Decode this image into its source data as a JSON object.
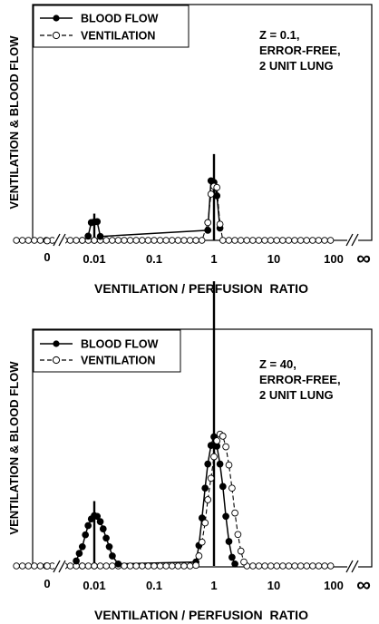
{
  "chart_data": [
    {
      "type": "line",
      "xlabel": "VENTILATION / PERFUSION  RATIO",
      "ylabel": "VENTILATION & BLOOD FLOW",
      "x_scale": "log",
      "x_ticks": [
        "0",
        "0.01",
        "0.1",
        "1",
        "10",
        "100",
        "∞"
      ],
      "legend_position": "top-left",
      "annotation": [
        "Z = 0.1,",
        "ERROR-FREE,",
        "2 UNIT LUNG"
      ],
      "true_distribution": [
        {
          "x": 0.01,
          "height": 0.48
        },
        {
          "x": 1,
          "height": 1.55
        }
      ],
      "series": [
        {
          "name": "BLOOD FLOW",
          "marker": "filled-circle",
          "line": "solid",
          "points": [
            {
              "x": 0.0079,
              "y": 0.15
            },
            {
              "x": 0.0089,
              "y": 0.64
            },
            {
              "x": 0.01,
              "y": 0.66
            },
            {
              "x": 0.0112,
              "y": 0.67
            },
            {
              "x": 0.0126,
              "y": 0.14
            },
            {
              "x": 0.79,
              "y": 0.36
            },
            {
              "x": 0.89,
              "y": 2.14
            },
            {
              "x": 1.0,
              "y": 2.08
            },
            {
              "x": 1.12,
              "y": 1.6
            },
            {
              "x": 1.26,
              "y": 0.44
            }
          ]
        },
        {
          "name": "VENTILATION",
          "marker": "open-circle",
          "line": "dashed",
          "points": [
            {
              "x": 0.0005,
              "y": 0
            },
            {
              "x": 0.0063,
              "y": 0
            },
            {
              "x": 0.01,
              "y": 0
            },
            {
              "x": 0.5,
              "y": 0
            },
            {
              "x": 0.63,
              "y": 0
            },
            {
              "x": 0.79,
              "y": 0.64
            },
            {
              "x": 0.89,
              "y": 1.66
            },
            {
              "x": 1.0,
              "y": 1.94
            },
            {
              "x": 1.12,
              "y": 1.9
            },
            {
              "x": 1.26,
              "y": 0.58
            },
            {
              "x": 1.41,
              "y": 0
            },
            {
              "x": 100,
              "y": 0
            }
          ]
        }
      ]
    },
    {
      "type": "line",
      "xlabel": "VENTILATION / PERFUSION  RATIO",
      "ylabel": "VENTILATION & BLOOD FLOW",
      "x_scale": "log",
      "x_ticks": [
        "0",
        "0.01",
        "0.1",
        "1",
        "10",
        "100",
        "∞"
      ],
      "legend_position": "top-left",
      "annotation": [
        "Z = 40,",
        "ERROR-FREE,",
        "2 UNIT LUNG"
      ],
      "true_distribution": [
        {
          "x": 0.01,
          "height": 0.98
        },
        {
          "x": 1,
          "height": 4.3
        }
      ],
      "series": [
        {
          "name": "BLOOD FLOW",
          "marker": "filled-circle",
          "line": "solid",
          "points": [
            {
              "x": 0.005,
              "y": 0.15
            },
            {
              "x": 0.0056,
              "y": 0.38
            },
            {
              "x": 0.0063,
              "y": 0.58
            },
            {
              "x": 0.0071,
              "y": 0.94
            },
            {
              "x": 0.0079,
              "y": 1.22
            },
            {
              "x": 0.0089,
              "y": 1.42
            },
            {
              "x": 0.01,
              "y": 1.52
            },
            {
              "x": 0.0112,
              "y": 1.5
            },
            {
              "x": 0.0126,
              "y": 1.34
            },
            {
              "x": 0.0141,
              "y": 1.12
            },
            {
              "x": 0.0158,
              "y": 0.84
            },
            {
              "x": 0.0178,
              "y": 0.58
            },
            {
              "x": 0.02,
              "y": 0.3
            },
            {
              "x": 0.0251,
              "y": 0.06
            },
            {
              "x": 0.5,
              "y": 0.12
            },
            {
              "x": 0.56,
              "y": 0.62
            },
            {
              "x": 0.63,
              "y": 1.45
            },
            {
              "x": 0.71,
              "y": 2.35
            },
            {
              "x": 0.79,
              "y": 3.08
            },
            {
              "x": 0.89,
              "y": 3.64
            },
            {
              "x": 1.0,
              "y": 3.9
            },
            {
              "x": 1.12,
              "y": 3.62
            },
            {
              "x": 1.26,
              "y": 3.08
            },
            {
              "x": 1.41,
              "y": 2.4
            },
            {
              "x": 1.58,
              "y": 1.5
            },
            {
              "x": 1.78,
              "y": 0.74
            },
            {
              "x": 2.0,
              "y": 0.26
            },
            {
              "x": 2.24,
              "y": 0.06
            }
          ]
        },
        {
          "name": "VENTILATION",
          "marker": "open-circle",
          "line": "dashed",
          "points": [
            {
              "x": 0.0005,
              "y": 0
            },
            {
              "x": 0.0063,
              "y": 0
            },
            {
              "x": 0.01,
              "y": 0
            },
            {
              "x": 0.4,
              "y": 0
            },
            {
              "x": 0.5,
              "y": 0.02
            },
            {
              "x": 0.56,
              "y": 0.3
            },
            {
              "x": 0.63,
              "y": 0.72
            },
            {
              "x": 0.71,
              "y": 1.3
            },
            {
              "x": 0.79,
              "y": 2.0
            },
            {
              "x": 0.89,
              "y": 2.65
            },
            {
              "x": 1.0,
              "y": 3.3
            },
            {
              "x": 1.12,
              "y": 3.78
            },
            {
              "x": 1.26,
              "y": 3.98
            },
            {
              "x": 1.41,
              "y": 3.92
            },
            {
              "x": 1.58,
              "y": 3.6
            },
            {
              "x": 1.78,
              "y": 3.05
            },
            {
              "x": 2.0,
              "y": 2.35
            },
            {
              "x": 2.24,
              "y": 1.6
            },
            {
              "x": 2.51,
              "y": 0.95
            },
            {
              "x": 2.82,
              "y": 0.45
            },
            {
              "x": 3.16,
              "y": 0.12
            },
            {
              "x": 3.55,
              "y": 0
            },
            {
              "x": 100,
              "y": 0
            }
          ]
        }
      ]
    }
  ]
}
